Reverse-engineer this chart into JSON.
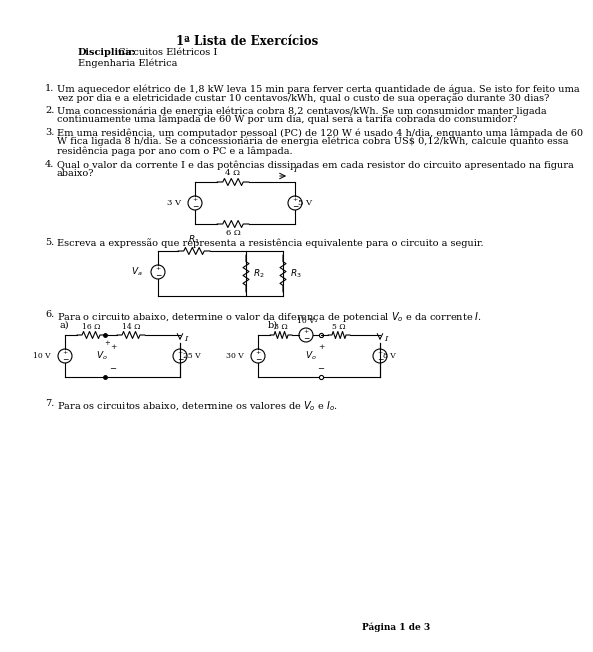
{
  "title": "1ª Lista de Exercícios",
  "disciplina_bold": "Disciplina:",
  "disciplina_rest": " Circuitos Elétricos I",
  "engenharia": "Engenharia Elétrica",
  "q1_num": "1.",
  "q1_body": "Um aquecedor elétrico de 1,8 kW leva 15 min para ferver certa quantidade de água. Se isto for feito uma vez por dia e a eletricidade custar 10 centavos/kWh, qual o custo de sua operação durante 30 dias?",
  "q2_num": "2.",
  "q2_body": "Uma concessionária de energia elétrica cobra 8,2 centavos/kWh. Se um consumidor manter ligada continuamente uma lâmpada de 60 W por um dia, qual será a tarifa cobrada do consumidor?",
  "q3_num": "3.",
  "q3_body": "Em uma residência, um computador pessoal (PC) de 120 W é usado 4 h/dia, enquanto uma lâmpada de 60 W fica ligada 8 h/dia. Se a concessionária de energia elétrica cobra US$ 0,12/kWh, calcule quanto essa residência paga por ano com o PC e a lâmpada.",
  "q4_num": "4.",
  "q4_body": "Qual o valor da corrente I e das potências dissipadas em cada resistor do circuito apresentado na figura abaixo?",
  "q5_num": "5.",
  "q5_body": "Escreva a expressão que representa a resistência equivalente para o circuito a seguir.",
  "q6_num": "6.",
  "q6_body": "Para o circuito abaixo, determine o valor da diferença de potencial Vₒ e da corrente I.",
  "q7_num": "7.",
  "q7_body": "Para os circuitos abaixo, determine os valores de Vₒ e Iₒ.",
  "page": "Página 1 de 3",
  "bg": "#ffffff",
  "fg": "#000000",
  "font_size_body": 7.0,
  "font_size_title": 8.5
}
